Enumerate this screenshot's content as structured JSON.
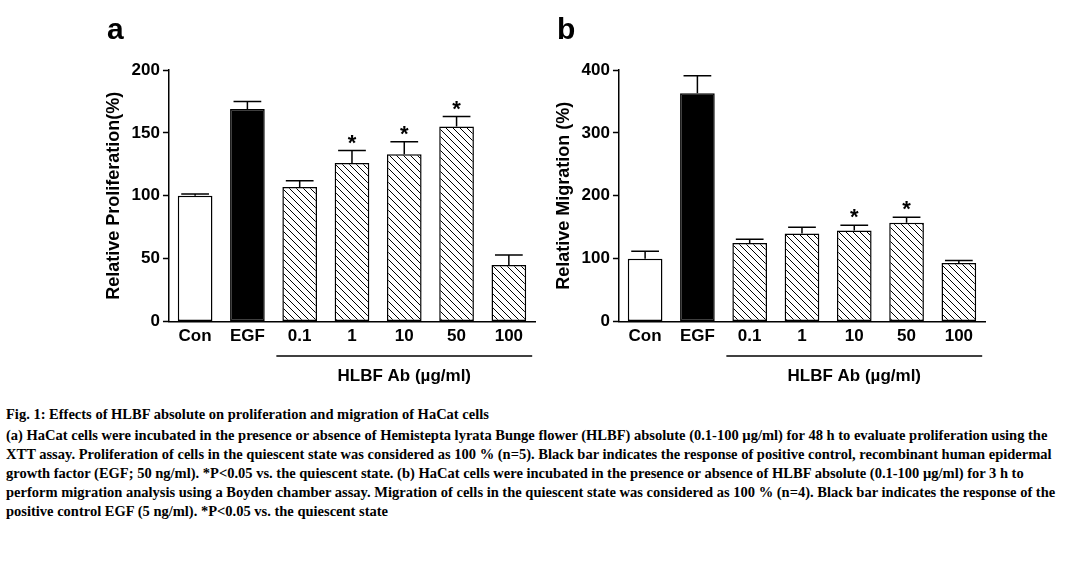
{
  "chart_data": [
    {
      "type": "bar",
      "panel": "a",
      "ylabel": "Relative Proliferation(%)",
      "categories": [
        "Con",
        "EGF",
        "0.1",
        "1",
        "10",
        "50",
        "100"
      ],
      "values": [
        100,
        169,
        107,
        126,
        133,
        155,
        45
      ],
      "errors": [
        1.5,
        6,
        5,
        10,
        10,
        8,
        8
      ],
      "colors": [
        "#ffffff",
        "#000000",
        "#000000",
        "#000000",
        "#000000",
        "#000000",
        "#000000"
      ],
      "group": {
        "label": "HLBF Ab (µg/ml)",
        "categories": [
          "0.1",
          "1",
          "10",
          "50",
          "100"
        ]
      },
      "annotations": [
        {
          "category": "1",
          "text": "*"
        },
        {
          "category": "10",
          "text": "*"
        },
        {
          "category": "50",
          "text": "*"
        }
      ],
      "ylim": [
        0,
        200
      ],
      "yticks": [
        0,
        50,
        100,
        150,
        200
      ],
      "grid": false
    },
    {
      "type": "bar",
      "panel": "b",
      "ylabel": "Relative Migration (%)",
      "categories": [
        "Con",
        "EGF",
        "0.1",
        "1",
        "10",
        "50",
        "100"
      ],
      "values": [
        100,
        363,
        125,
        140,
        145,
        157,
        93
      ],
      "errors": [
        12,
        28,
        6,
        10,
        8,
        9,
        4
      ],
      "colors": [
        "#ffffff",
        "#000000",
        "#000000",
        "#000000",
        "#000000",
        "#000000",
        "#000000"
      ],
      "group": {
        "label": "HLBF Ab (µg/ml)",
        "categories": [
          "0.1",
          "1",
          "10",
          "50",
          "100"
        ]
      },
      "annotations": [
        {
          "category": "10",
          "text": "*"
        },
        {
          "category": "50",
          "text": "*"
        }
      ],
      "ylim": [
        0,
        400
      ],
      "yticks": [
        0,
        100,
        200,
        300,
        400
      ],
      "grid": false
    }
  ],
  "caption": {
    "title": "Fig. 1: Effects of HLBF absolute on proliferation and migration of HaCat cells",
    "text": "(a) HaCat cells were incubated in the presence or absence of Hemistepta lyrata Bunge flower (HLBF) absolute (0.1-100 µg/ml) for 48 h to evaluate proliferation using the XTT assay. Proliferation of cells in the quiescent state was considered as 100 % (n=5). Black bar indicates the response of positive control, recombinant human epidermal growth factor (EGF; 50 ng/ml). *P<0.05 vs. the quiescent state. (b) HaCat cells were incubated in the presence or absence of HLBF absolute (0.1-100 µg/ml) for 3 h to perform migration analysis using a Boyden chamber assay. Migration of cells in the quiescent state was considered as 100 % (n=4). Black bar indicates the response of the positive control EGF (5 ng/ml). *P<0.05 vs. the quiescent state"
  }
}
